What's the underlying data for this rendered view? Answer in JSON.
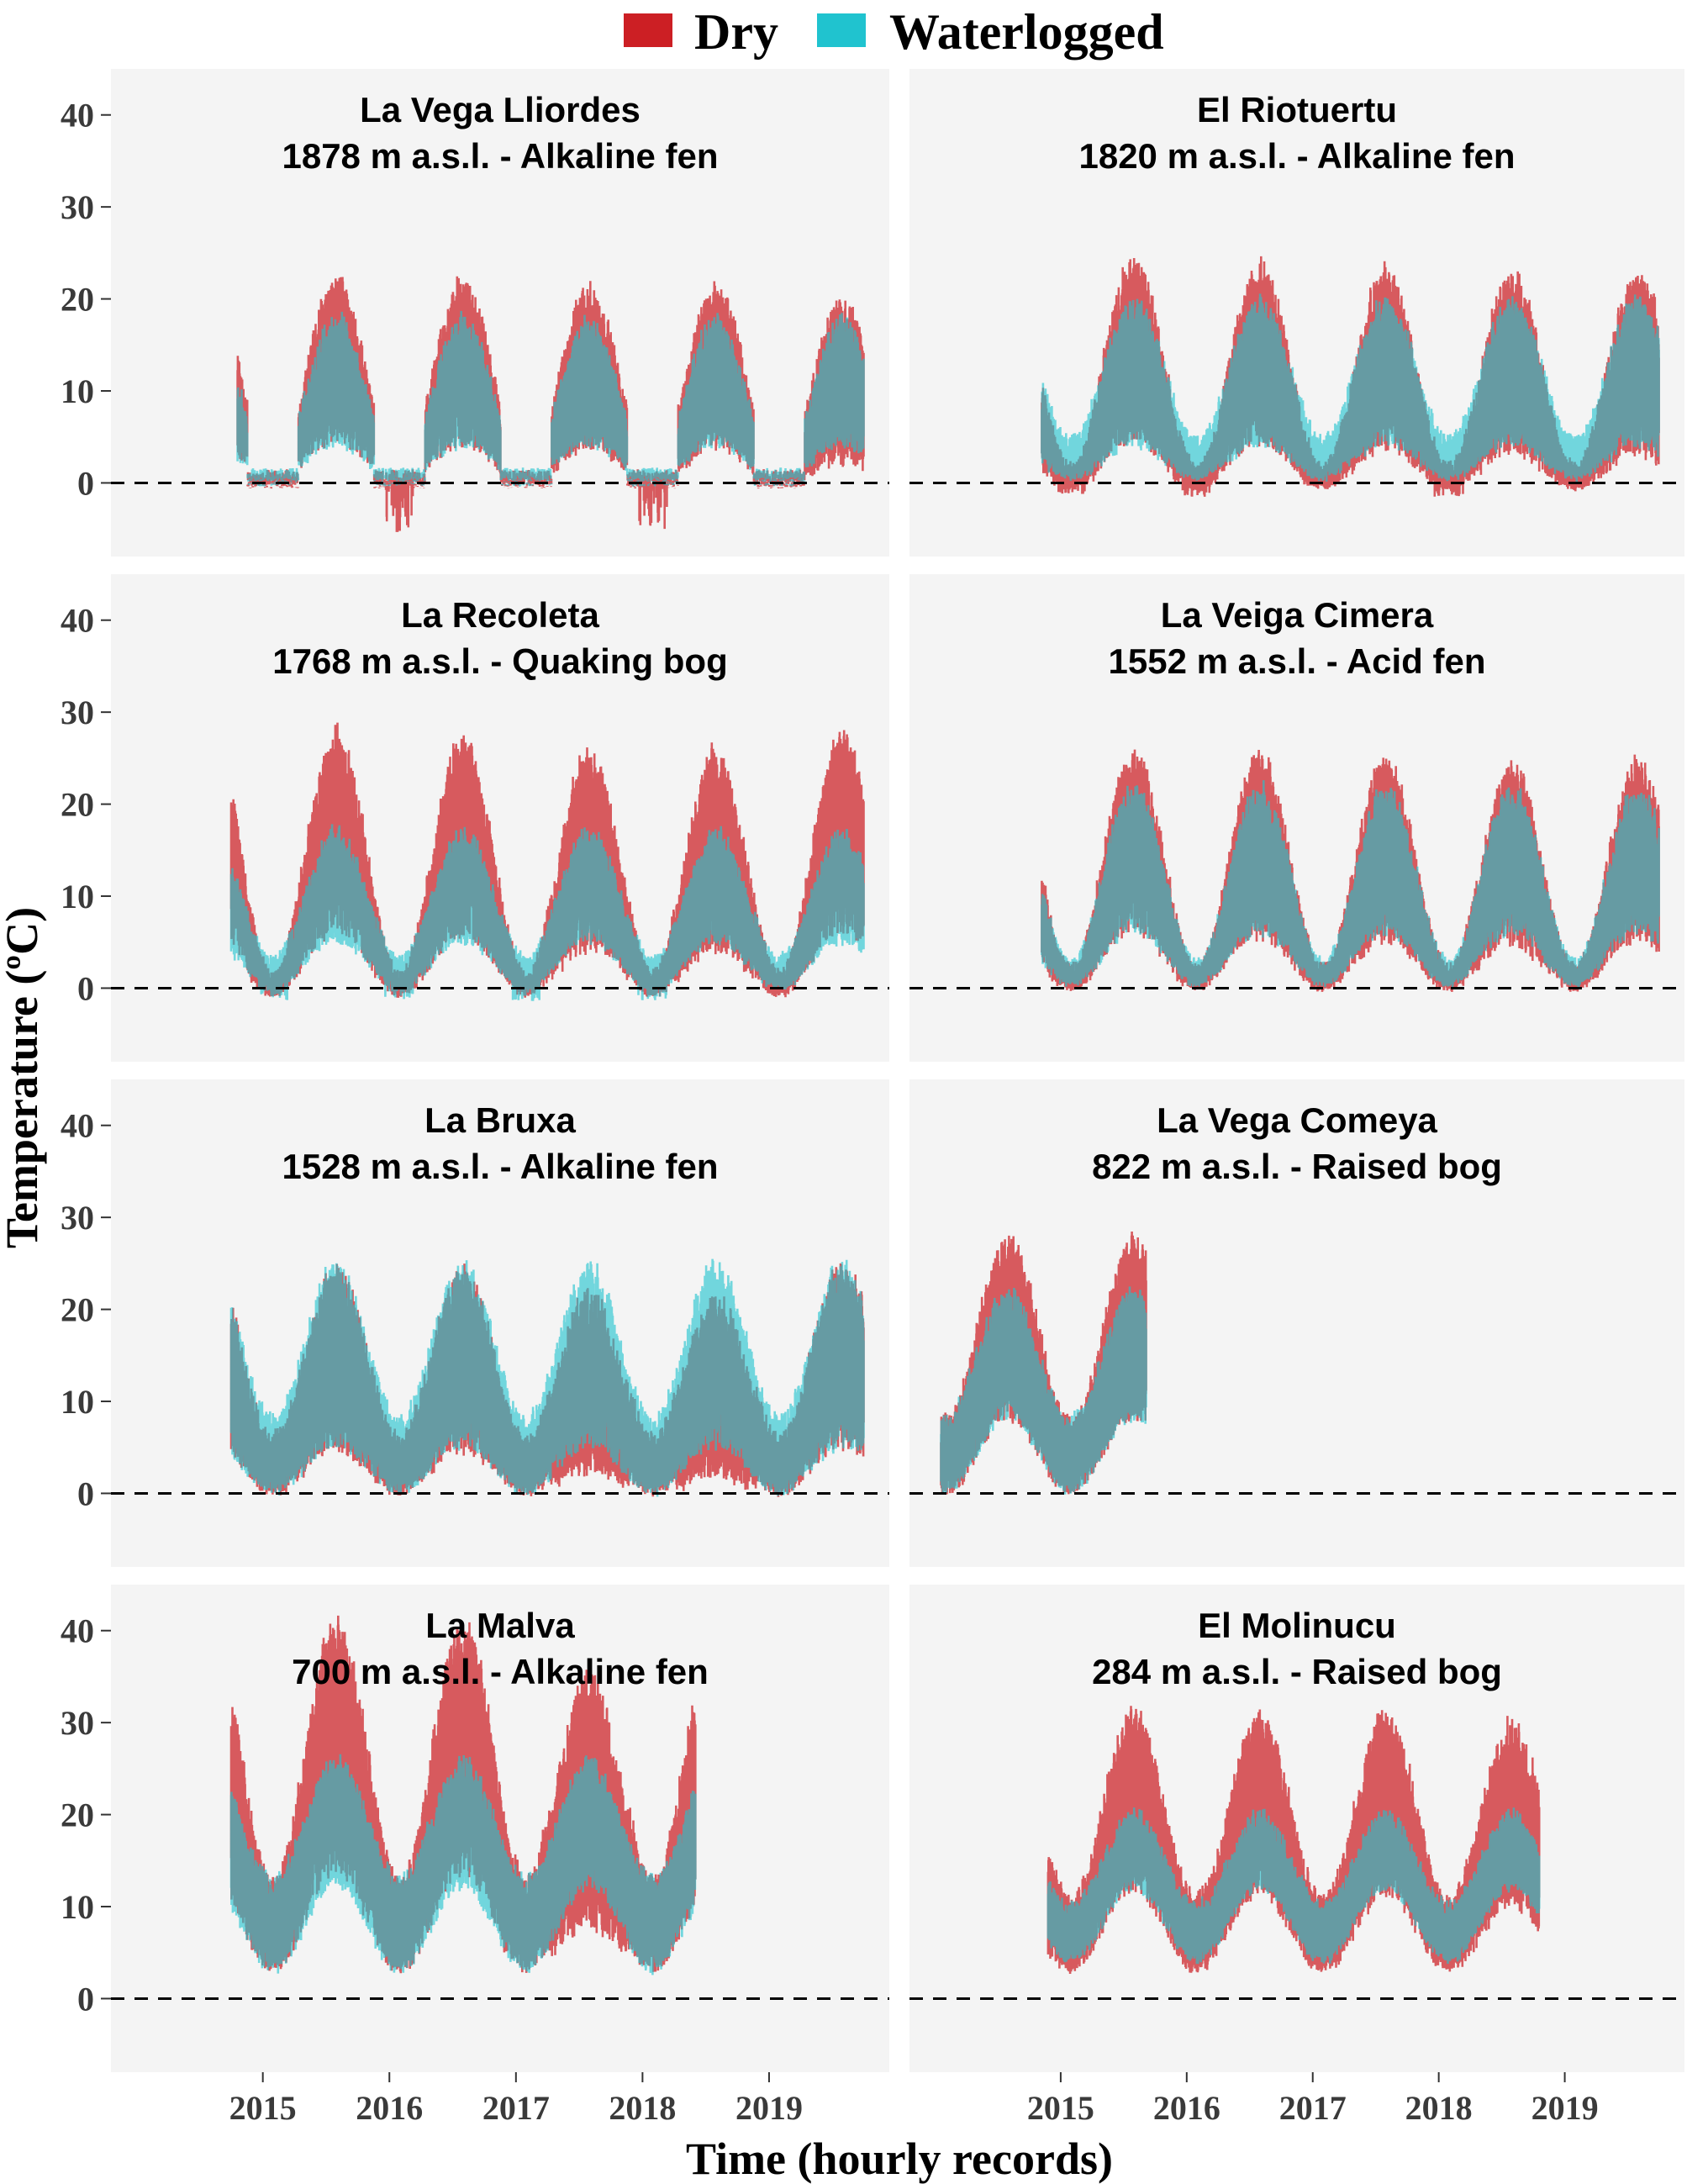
{
  "colors": {
    "dry": "#cc1f24",
    "waterlogged": "#20c3cf",
    "panel_bg": "#f4f4f4",
    "zero_line": "#000000"
  },
  "legend": {
    "position": "top",
    "items": [
      {
        "label": "Dry",
        "color": "#cc1f24"
      },
      {
        "label": "Waterlogged",
        "color": "#20c3cf"
      }
    ]
  },
  "chart_data": {
    "type": "line",
    "layout": "faceted 4 rows x 2 columns",
    "xlabel": "Time (hourly records)",
    "ylabel": "Temperature (ºC)",
    "xlim": [
      2013.8,
      2019.95
    ],
    "ylim": [
      -8,
      45
    ],
    "x_ticks": [
      2015,
      2016,
      2017,
      2018,
      2019
    ],
    "y_ticks": [
      0,
      10,
      20,
      30,
      40
    ],
    "reference_line": {
      "y": 0,
      "style": "dashed"
    },
    "grid": false,
    "panels": [
      {
        "title": "La Vega Lliordes",
        "subtitle": "1878 m a.s.l. - Alkaline fen",
        "start": 2014.8,
        "end": 2019.75,
        "dry": {
          "mean_summer": 11,
          "mean_winter": 0.2,
          "amp_summer": 9,
          "amp_winter": 0.3,
          "peak": [
            26,
            25,
            24,
            23,
            23
          ],
          "snow": true,
          "winter_dips": [
            -0.6,
            -0.1,
            -5.5,
            -0.1,
            -5.0
          ]
        },
        "waterlogged": {
          "mean_summer": 11,
          "mean_winter": 0.5,
          "amp_summer": 7,
          "amp_winter": 0.2,
          "snow": true
        }
      },
      {
        "title": "El Riotuertu",
        "subtitle": "1820 m a.s.l. - Alkaline fen",
        "start": 2014.85,
        "end": 2019.75,
        "dry": {
          "mean_summer": 13,
          "mean_winter": 0.5,
          "amp_summer": 10,
          "amp_winter": 1,
          "peak": [
            25,
            26,
            25,
            24,
            23
          ],
          "winter_dips": [
            0,
            -1.2,
            -1.5,
            -0.3,
            -1.5
          ]
        },
        "waterlogged": {
          "mean_summer": 12,
          "mean_winter": 2.5,
          "amp_summer": 8,
          "amp_winter": 2
        }
      },
      {
        "title": "La Recoleta",
        "subtitle": "1768 m a.s.l. - Quaking bog",
        "start": 2014.75,
        "end": 2019.75,
        "dry": {
          "mean_summer": 17,
          "mean_winter": 0.3,
          "amp_summer": 11,
          "amp_winter": 1,
          "peak": [
            31,
            28,
            27,
            24,
            24
          ],
          "winter_dips": [
            0,
            0,
            0,
            0,
            0
          ]
        },
        "waterlogged": {
          "mean_summer": 11,
          "mean_winter": 1.5,
          "amp_summer": 6,
          "amp_winter": 1.5,
          "winter_dips": [
            -1.5,
            -1.3,
            -1.2,
            -1.4,
            -1.3
          ]
        }
      },
      {
        "title": "La Veiga Cimera",
        "subtitle": "1552 m a.s.l. - Acid fen",
        "start": 2014.85,
        "end": 2019.75,
        "dry": {
          "mean_summer": 15,
          "mean_winter": 1,
          "amp_summer": 10,
          "amp_winter": 1,
          "peak": [
            29,
            27,
            26,
            25,
            24
          ]
        },
        "waterlogged": {
          "mean_summer": 14,
          "mean_winter": 1.5,
          "amp_summer": 8,
          "amp_winter": 1
        }
      },
      {
        "title": "La Bruxa",
        "subtitle": "1528 m a.s.l. - Alkaline fen",
        "start": 2014.75,
        "end": 2019.75,
        "dry": {
          "mean_summer": 15,
          "mean_winter": 3,
          "amp_summer": 10,
          "amp_winter": 3,
          "peak": [
            27,
            24,
            24,
            19,
            18
          ]
        },
        "waterlogged": {
          "mean_summer": 15,
          "mean_winter": 4,
          "amp_summer": 10,
          "amp_winter": 4
        }
      },
      {
        "title": "La Vega Comeya",
        "subtitle": "822 m a.s.l. - Raised bog",
        "start": 2014.05,
        "end": 2015.68,
        "dry": {
          "mean_summer": 17,
          "mean_winter": 4,
          "amp_summer": 10,
          "amp_winter": 4,
          "peak": [
            29,
            29
          ]
        },
        "waterlogged": {
          "mean_summer": 15,
          "mean_winter": 4,
          "amp_summer": 7,
          "amp_winter": 4
        }
      },
      {
        "title": "La Malva",
        "subtitle": "700 m a.s.l. - Alkaline fen",
        "start": 2014.75,
        "end": 2018.42,
        "dry": {
          "mean_summer": 26,
          "mean_winter": 8,
          "amp_summer": 14,
          "amp_winter": 5,
          "peak": [
            42,
            43,
            43,
            31
          ]
        },
        "waterlogged": {
          "mean_summer": 19,
          "mean_winter": 8,
          "amp_summer": 7,
          "amp_winter": 5
        }
      },
      {
        "title": "El Molinucu",
        "subtitle": "284 m a.s.l. - Raised bog",
        "start": 2014.9,
        "end": 2018.8,
        "dry": {
          "mean_summer": 20,
          "mean_winter": 7,
          "amp_summer": 10,
          "amp_winter": 4,
          "peak": [
            31,
            33,
            32,
            32
          ]
        },
        "waterlogged": {
          "mean_summer": 16,
          "mean_winter": 7,
          "amp_summer": 4,
          "amp_winter": 3
        }
      }
    ]
  }
}
